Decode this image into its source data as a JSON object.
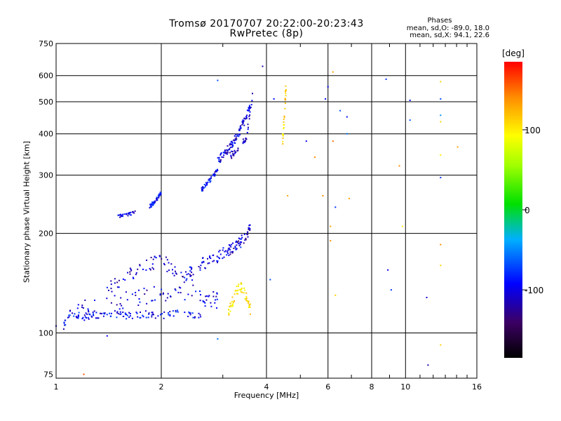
{
  "chart_data": {
    "type": "scatter",
    "title": "Tromsø 20170707 20:22:00-20:23:43",
    "subtitle": "RwPretec (8p)",
    "stats_heading": "Phases",
    "stats_o": "mean, sd,O: -89.0, 18.0",
    "stats_x": "mean, sd,X:  94.1, 22.6",
    "xlabel": "Frequency [MHz]",
    "ylabel": "Stationary phase Virtual Height [km]",
    "xscale": "log",
    "yscale": "log",
    "xlim": [
      1,
      16
    ],
    "ylim": [
      73,
      750
    ],
    "xticks": [
      1,
      2,
      4,
      6,
      8,
      10,
      16
    ],
    "yticks": [
      75,
      100,
      200,
      300,
      400,
      500,
      600,
      750
    ],
    "grid": true,
    "colorbar": {
      "label": "[deg]",
      "min": -185,
      "max": 185,
      "ticks": [
        100,
        0,
        -100
      ],
      "position": "right"
    },
    "series": [
      {
        "traces": [
          {
            "f": [
              1.05,
              1.1,
              1.2,
              1.3,
              1.45,
              1.6,
              1.8,
              2.0,
              2.3,
              2.6
            ],
            "h": [
              105,
              115,
              112,
              113,
              114,
              113,
              114,
              113,
              115,
              113
            ],
            "phase": -95,
            "spread": 0.05
          },
          {
            "f": [
              1.15,
              1.4,
              1.7,
              2.0,
              2.3,
              2.7,
              2.9
            ],
            "h": [
              118,
              122,
              128,
              132,
              130,
              128,
              125
            ],
            "phase": -105,
            "spread": 0.12
          },
          {
            "f": [
              1.4,
              1.6,
              1.8,
              2.0,
              2.2,
              2.5
            ],
            "h": [
              138,
              148,
              160,
              168,
              152,
              145
            ],
            "phase": -110,
            "spread": 0.1
          },
          {
            "f": [
              2.3,
              2.6,
              2.8,
              3.0,
              3.2,
              3.4
            ],
            "h": [
              150,
              162,
              165,
              175,
              180,
              190
            ],
            "phase": -100,
            "spread": 0.08
          },
          {
            "f": [
              3.1,
              3.3,
              3.5,
              3.6
            ],
            "h": [
              175,
              185,
              195,
              210
            ],
            "phase": -115,
            "spread": 0.06
          },
          {
            "f": [
              1.5,
              1.6,
              1.7
            ],
            "h": [
              225,
              228,
              232
            ],
            "phase": -100,
            "spread": 0.02
          },
          {
            "f": [
              1.85,
              1.9,
              1.95,
              2.0
            ],
            "h": [
              240,
              248,
              255,
              268
            ],
            "phase": -90,
            "spread": 0.03
          },
          {
            "f": [
              2.6,
              2.7,
              2.8,
              2.9
            ],
            "h": [
              270,
              282,
              296,
              310
            ],
            "phase": -95,
            "spread": 0.03
          },
          {
            "f": [
              2.9,
              3.0,
              3.1,
              3.2,
              3.3,
              3.4,
              3.5,
              3.6
            ],
            "h": [
              330,
              345,
              360,
              375,
              395,
              420,
              450,
              480
            ],
            "phase": -105,
            "spread": 0.06
          },
          {
            "f": [
              3.1,
              3.3,
              3.5,
              3.65
            ],
            "h": [
              340,
              355,
              390,
              520
            ],
            "phase": -110,
            "spread": 0.05
          },
          {
            "f": [
              3.1,
              3.2,
              3.35,
              3.5,
              3.6
            ],
            "h": [
              115,
              125,
              140,
              130,
              118
            ],
            "phase": 100,
            "spread": 0.08
          },
          {
            "f": [
              4.45,
              4.5,
              4.55
            ],
            "h": [
              380,
              450,
              560
            ],
            "phase": 110,
            "spread": 0.08
          }
        ]
      }
    ],
    "scattered_points": [
      {
        "f": 1.0,
        "h": 105,
        "phase": -110
      },
      {
        "f": 1.4,
        "h": 98,
        "phase": -100
      },
      {
        "f": 1.2,
        "h": 75,
        "phase": 160
      },
      {
        "f": 2.9,
        "h": 96,
        "phase": -60
      },
      {
        "f": 2.9,
        "h": 580,
        "phase": -70
      },
      {
        "f": 3.9,
        "h": 640,
        "phase": -120
      },
      {
        "f": 4.1,
        "h": 145,
        "phase": -70
      },
      {
        "f": 4.2,
        "h": 510,
        "phase": -90
      },
      {
        "f": 4.6,
        "h": 260,
        "phase": 130
      },
      {
        "f": 5.2,
        "h": 380,
        "phase": -100
      },
      {
        "f": 5.5,
        "h": 340,
        "phase": 140
      },
      {
        "f": 5.8,
        "h": 260,
        "phase": 140
      },
      {
        "f": 5.9,
        "h": 510,
        "phase": -90
      },
      {
        "f": 6.0,
        "h": 555,
        "phase": -100
      },
      {
        "f": 6.1,
        "h": 190,
        "phase": 140
      },
      {
        "f": 6.1,
        "h": 210,
        "phase": 130
      },
      {
        "f": 6.2,
        "h": 380,
        "phase": 150
      },
      {
        "f": 6.2,
        "h": 615,
        "phase": 130
      },
      {
        "f": 6.3,
        "h": 240,
        "phase": -80
      },
      {
        "f": 6.3,
        "h": 130,
        "phase": 110
      },
      {
        "f": 6.5,
        "h": 470,
        "phase": -70
      },
      {
        "f": 6.8,
        "h": 450,
        "phase": -90
      },
      {
        "f": 6.8,
        "h": 400,
        "phase": -60
      },
      {
        "f": 6.9,
        "h": 255,
        "phase": 130
      },
      {
        "f": 8.8,
        "h": 585,
        "phase": -80
      },
      {
        "f": 8.9,
        "h": 155,
        "phase": -100
      },
      {
        "f": 9.1,
        "h": 135,
        "phase": -80
      },
      {
        "f": 9.6,
        "h": 320,
        "phase": 140
      },
      {
        "f": 9.8,
        "h": 210,
        "phase": 100
      },
      {
        "f": 10.3,
        "h": 505,
        "phase": -90
      },
      {
        "f": 10.3,
        "h": 440,
        "phase": -70
      },
      {
        "f": 11.5,
        "h": 128,
        "phase": -110
      },
      {
        "f": 11.6,
        "h": 80,
        "phase": -120
      },
      {
        "f": 12.6,
        "h": 575,
        "phase": 110
      },
      {
        "f": 12.6,
        "h": 510,
        "phase": -70
      },
      {
        "f": 12.6,
        "h": 455,
        "phase": -50
      },
      {
        "f": 12.6,
        "h": 435,
        "phase": 110
      },
      {
        "f": 12.6,
        "h": 345,
        "phase": 100
      },
      {
        "f": 12.6,
        "h": 295,
        "phase": -80
      },
      {
        "f": 12.6,
        "h": 185,
        "phase": 140
      },
      {
        "f": 12.6,
        "h": 160,
        "phase": 110
      },
      {
        "f": 12.6,
        "h": 92,
        "phase": 110
      },
      {
        "f": 14.1,
        "h": 365,
        "phase": 130
      }
    ]
  }
}
